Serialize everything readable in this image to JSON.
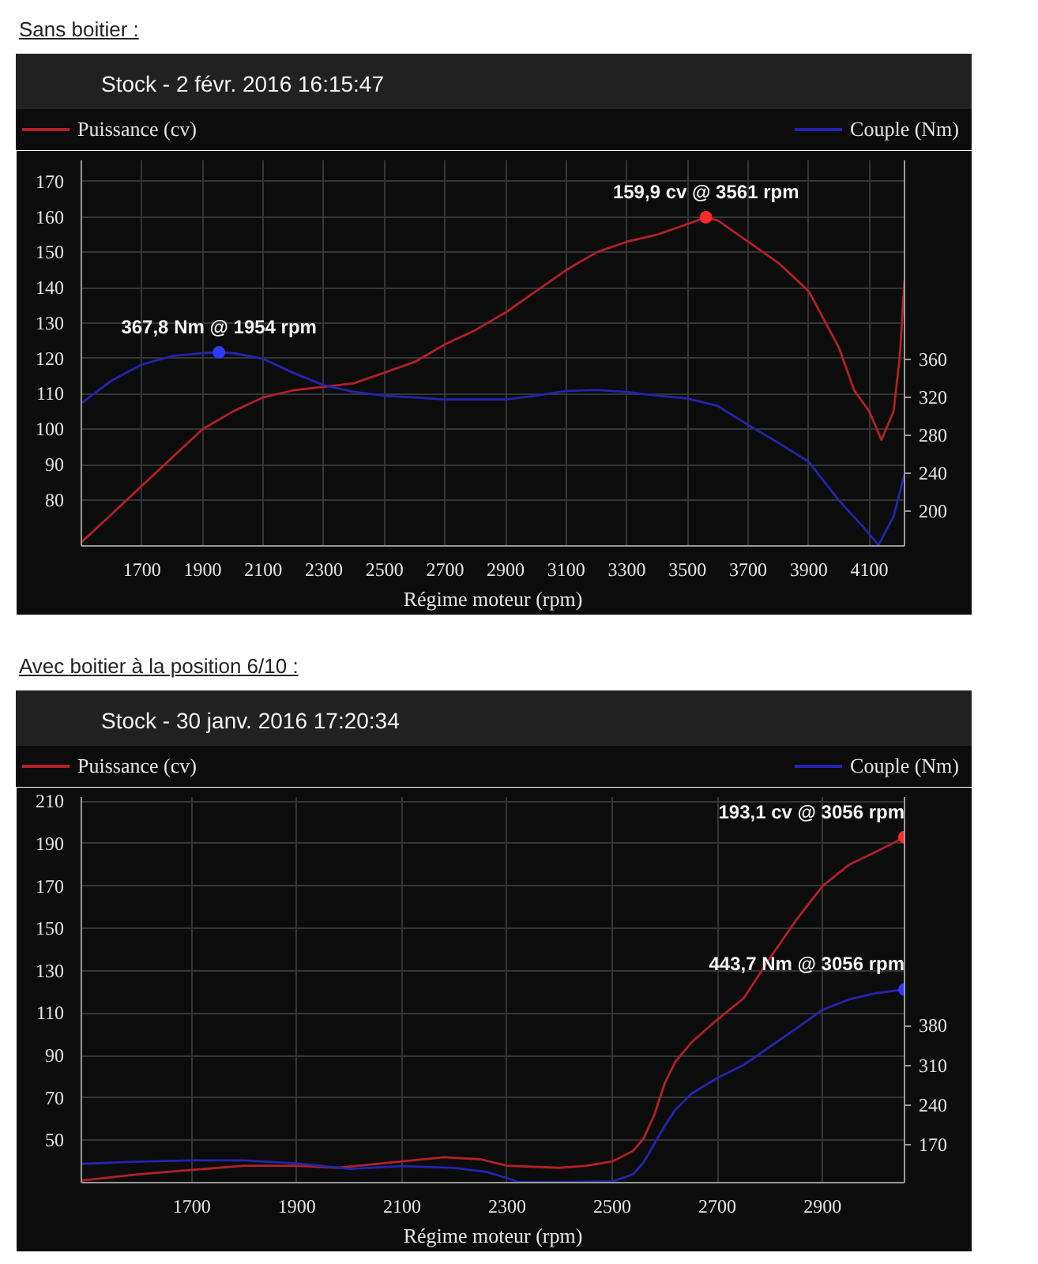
{
  "chart_data": [
    {
      "type": "line",
      "title": "Sans boitier :",
      "subtitle": "Stock - 2 févr. 2016 16:15:47",
      "xlabel": "Régime moteur (rpm)",
      "legend": "top",
      "grid": true,
      "xlim": [
        1500,
        4216
      ],
      "xticks": [
        1700,
        1900,
        2100,
        2300,
        2500,
        2700,
        2900,
        3100,
        3300,
        3500,
        3700,
        3900,
        4100
      ],
      "ylim": [
        67,
        176
      ],
      "yticks": [
        80,
        90,
        100,
        110,
        120,
        130,
        140,
        150,
        160,
        170
      ],
      "y2lim": [
        163,
        571
      ],
      "y2ticks": [
        200,
        240,
        280,
        320,
        360
      ],
      "series": [
        {
          "name": "Puissance (cv)",
          "color": "#b3202a",
          "x": [
            1500,
            1600,
            1700,
            1800,
            1900,
            2000,
            2100,
            2200,
            2300,
            2400,
            2500,
            2600,
            2700,
            2800,
            2900,
            3000,
            3100,
            3200,
            3300,
            3400,
            3500,
            3561,
            3600,
            3700,
            3800,
            3900,
            4000,
            4050,
            4100,
            4140,
            4180,
            4200,
            4216
          ],
          "values": [
            68,
            76,
            84,
            92,
            100,
            105,
            109,
            111,
            112,
            113,
            116,
            119,
            124,
            128,
            133,
            139,
            145,
            150,
            153,
            155,
            158,
            159.9,
            159,
            153,
            147,
            139,
            123,
            111,
            105,
            97,
            105,
            120,
            142
          ]
        },
        {
          "name": "Couple (Nm)",
          "color": "#2424b0",
          "axis": "y2",
          "x": [
            1500,
            1600,
            1700,
            1800,
            1900,
            1954,
            2000,
            2100,
            2200,
            2300,
            2400,
            2500,
            2600,
            2700,
            2800,
            2900,
            3000,
            3100,
            3200,
            3300,
            3400,
            3500,
            3600,
            3700,
            3800,
            3900,
            4000,
            4080,
            4130,
            4180,
            4216
          ],
          "values": [
            314,
            338,
            355,
            364,
            367,
            367.8,
            367,
            361,
            346,
            333,
            326,
            322,
            320,
            318,
            318,
            318,
            322,
            327,
            328,
            326,
            322,
            319,
            311,
            291,
            272,
            252,
            211,
            183,
            164,
            194,
            239
          ]
        },
        {
          "type": "scatter",
          "marker": "circle",
          "color": "#ff2a2a",
          "x": [
            3561
          ],
          "values": [
            159.9
          ],
          "value_labels": [
            "159,9 cv @ 3561 rpm"
          ]
        },
        {
          "type": "scatter",
          "marker": "circle",
          "color": "#2a3cff",
          "axis": "y2",
          "x": [
            1954
          ],
          "values": [
            367.8
          ],
          "value_labels": [
            "367,8 Nm @ 1954 rpm"
          ]
        }
      ]
    },
    {
      "type": "line",
      "title": "Avec boitier à la position 6/10 :",
      "subtitle": "Stock - 30 janv. 2016 17:20:34",
      "xlabel": "Régime moteur (rpm)",
      "legend": "top",
      "grid": true,
      "xlim": [
        1490,
        3056
      ],
      "xticks": [
        1700,
        1900,
        2100,
        2300,
        2500,
        2700,
        2900
      ],
      "ylim": [
        30,
        212
      ],
      "yticks": [
        50,
        70,
        90,
        110,
        130,
        150,
        170,
        190,
        210
      ],
      "y2lim": [
        104,
        782
      ],
      "y2ticks": [
        170,
        240,
        310,
        380
      ],
      "series": [
        {
          "name": "Puissance (cv)",
          "color": "#b3202a",
          "x": [
            1490,
            1600,
            1700,
            1800,
            1900,
            1980,
            2100,
            2180,
            2250,
            2300,
            2400,
            2450,
            2500,
            2540,
            2560,
            2580,
            2600,
            2620,
            2650,
            2700,
            2750,
            2800,
            2850,
            2900,
            2950,
            3000,
            3056
          ],
          "values": [
            31,
            34,
            36,
            38,
            38,
            37,
            40,
            42,
            41,
            38,
            37,
            38,
            40,
            45,
            51,
            62,
            77,
            87,
            96,
            107,
            117,
            136,
            154,
            170,
            180,
            186,
            193.1
          ]
        },
        {
          "name": "Couple (Nm)",
          "color": "#2424b0",
          "axis": "y2",
          "x": [
            1490,
            1600,
            1700,
            1800,
            1900,
            2000,
            2100,
            2200,
            2260,
            2300,
            2320,
            2400,
            2500,
            2540,
            2560,
            2580,
            2600,
            2620,
            2650,
            2700,
            2750,
            2800,
            2850,
            2900,
            2950,
            3000,
            3056
          ],
          "values": [
            137,
            141,
            143,
            143,
            138,
            128,
            133,
            130,
            123,
            112,
            105,
            105,
            106,
            119,
            140,
            172,
            204,
            232,
            260,
            288,
            311,
            343,
            375,
            408,
            426,
            437,
            443.7
          ]
        },
        {
          "type": "scatter",
          "marker": "circle",
          "color": "#ff2a2a",
          "x": [
            3056
          ],
          "values": [
            193.1
          ],
          "value_labels": [
            "193,1 cv @ 3056 rpm"
          ]
        },
        {
          "type": "scatter",
          "marker": "circle",
          "color": "#2a3cff",
          "axis": "y2",
          "x": [
            3056
          ],
          "values": [
            443.7
          ],
          "value_labels": [
            "443,7 Nm @ 3056 rpm"
          ]
        }
      ]
    }
  ]
}
